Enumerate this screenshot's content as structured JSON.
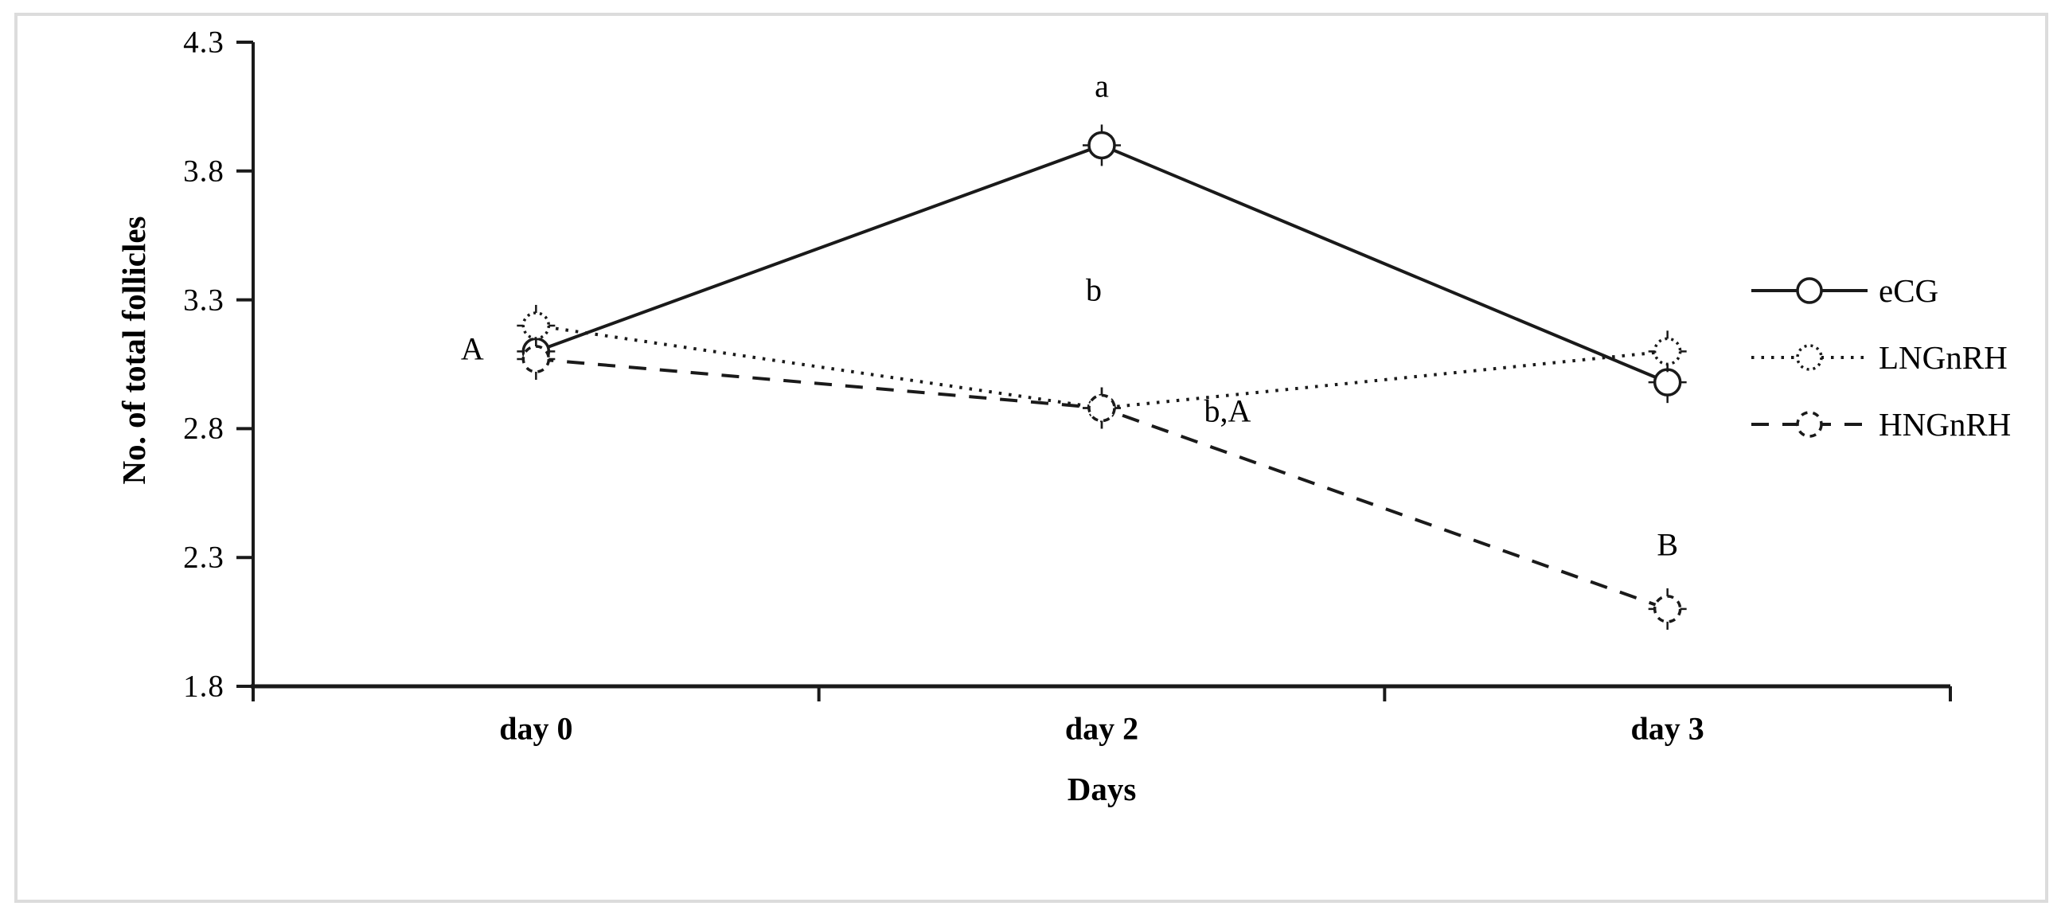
{
  "figure": {
    "background": "#ffffff",
    "frame_color": "#dcdcdc",
    "line_color": "#1a1a1a",
    "text_color": "#000000"
  },
  "chart_data": {
    "type": "line",
    "title": "",
    "xlabel": "Days",
    "ylabel": "No. of total follicles",
    "categories": [
      "day 0",
      "day 2",
      "day 3"
    ],
    "series": [
      {
        "name": "eCG",
        "style": "solid",
        "values": [
          3.1,
          3.9,
          2.98
        ]
      },
      {
        "name": "LNGnRH",
        "style": "dotted",
        "values": [
          3.2,
          2.88,
          3.1
        ]
      },
      {
        "name": "HNGnRH",
        "style": "dashed",
        "values": [
          3.07,
          2.88,
          2.1
        ]
      }
    ],
    "ylim": [
      1.8,
      4.3
    ],
    "yticks": [
      1.8,
      2.3,
      2.8,
      3.3,
      3.8,
      4.3
    ],
    "ytick_labels": [
      "1.8",
      "2.3",
      "2.8",
      "3.3",
      "3.8",
      "4.3"
    ],
    "grid": false,
    "legend_position": "right",
    "marker": "open-circle-with-cross",
    "annotations": [
      {
        "text": "A",
        "cat": 0,
        "value": 3.11,
        "dx": -80
      },
      {
        "text": "a",
        "cat": 1,
        "value": 4.13,
        "dx": 0
      },
      {
        "text": "b",
        "cat": 1,
        "value": 3.34,
        "dx": -10
      },
      {
        "text": "b,A",
        "cat": 1,
        "value": 2.87,
        "dx": 158
      },
      {
        "text": "B",
        "cat": 2,
        "value": 2.35,
        "dx": 0
      }
    ]
  },
  "legend": {
    "items": [
      {
        "label": "eCG"
      },
      {
        "label": "LNGnRH"
      },
      {
        "label": "HNGnRH"
      }
    ]
  }
}
